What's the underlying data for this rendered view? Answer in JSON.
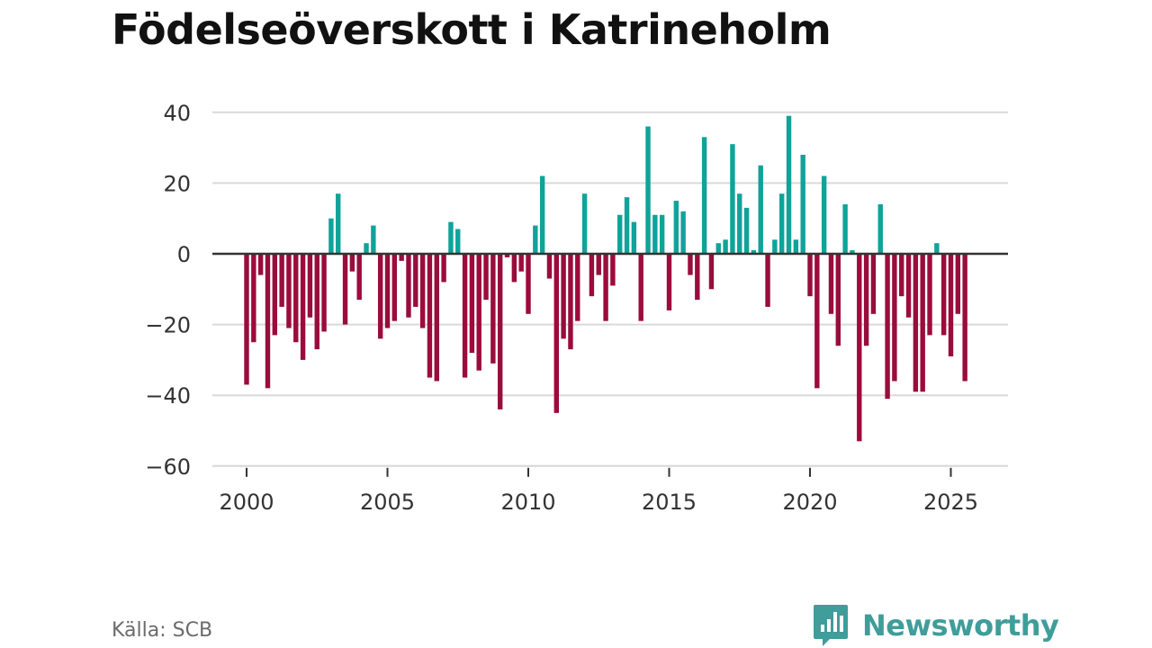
{
  "title": "Födelseöverskott i Katrineholm",
  "source": "Källa: SCB",
  "brand": "Newsworthy",
  "colors": {
    "positive": "#0fa39a",
    "negative": "#9a0c3c",
    "grid": "#d9d9d9",
    "zero": "#333333",
    "brand": "#3f9d9a"
  },
  "chart_data": {
    "type": "bar",
    "title": "Födelseöverskott i Katrineholm",
    "xlabel": "",
    "ylabel": "",
    "x_ticks": [
      2000,
      2005,
      2010,
      2015,
      2020,
      2025
    ],
    "x_tick_labels": [
      "2000",
      "2005",
      "2010",
      "2015",
      "2020",
      "2025"
    ],
    "y_ticks": [
      40,
      20,
      0,
      -20,
      -40,
      -60
    ],
    "y_tick_labels": [
      "40",
      "20",
      "0",
      "−20",
      "−40",
      "−60"
    ],
    "ylim": [
      -60,
      40
    ],
    "xlim": [
      1999.6,
      2026.8
    ],
    "period": "quarterly",
    "start": {
      "year": 2000,
      "quarter": 1
    },
    "values": [
      -37,
      -25,
      -6,
      -38,
      -23,
      -15,
      -21,
      -25,
      -30,
      -18,
      -27,
      -22,
      10,
      17,
      -20,
      -5,
      -13,
      3,
      8,
      -24,
      -21,
      -19,
      -2,
      -18,
      -15,
      -21,
      -35,
      -36,
      -8,
      9,
      7,
      -35,
      -28,
      -33,
      -13,
      -31,
      -44,
      -1,
      -8,
      -5,
      -17,
      8,
      22,
      -7,
      -45,
      -24,
      -27,
      -19,
      17,
      -12,
      -6,
      -19,
      -9,
      11,
      16,
      9,
      -19,
      36,
      11,
      11,
      -16,
      15,
      12,
      -6,
      -13,
      33,
      -10,
      3,
      4,
      31,
      17,
      13,
      1,
      25,
      -15,
      4,
      17,
      39,
      4,
      28,
      -12,
      -38,
      22,
      -17,
      -26,
      14,
      1,
      -53,
      -26,
      -17,
      14,
      -41,
      -36,
      -12,
      -18,
      -39,
      -39,
      -23,
      3,
      -23,
      -29,
      -17,
      -36
    ]
  }
}
